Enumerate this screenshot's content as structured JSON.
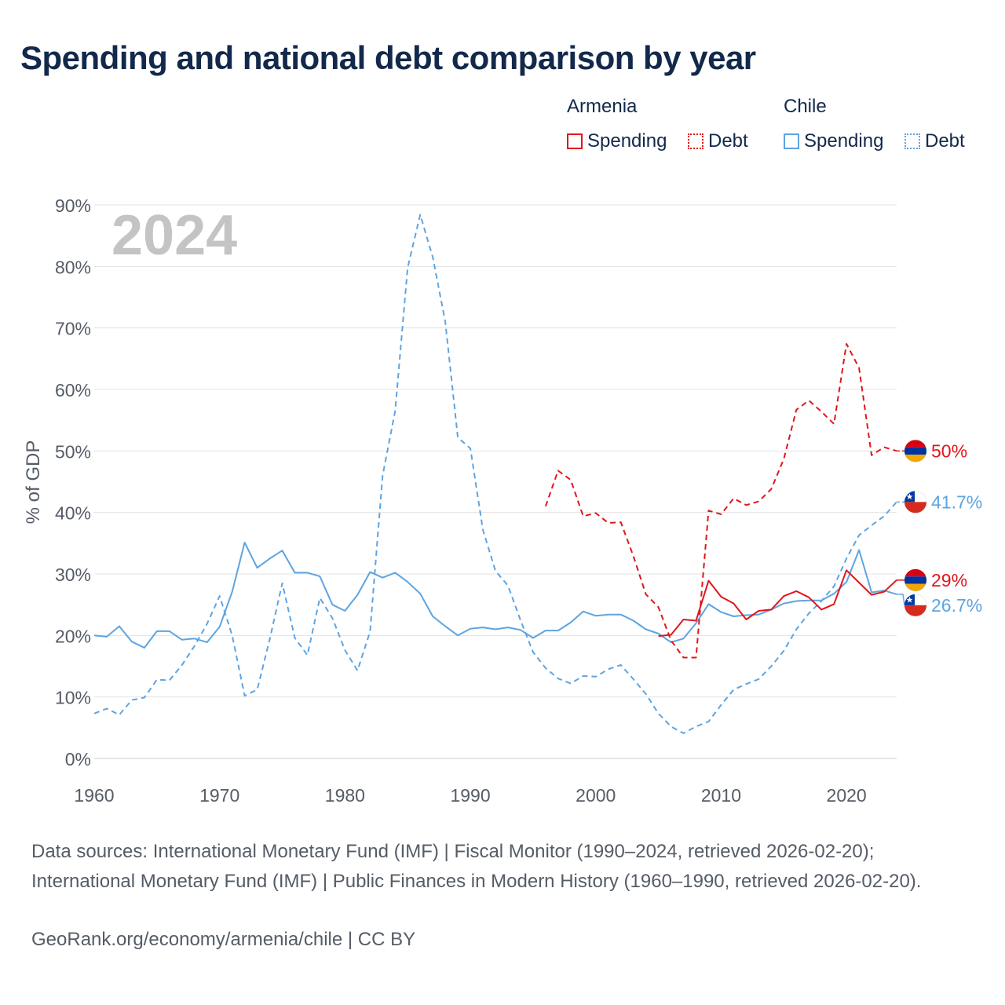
{
  "title": "Spending and national debt comparison by year",
  "legend": {
    "groups": [
      {
        "country": "Armenia",
        "color": "#e0161b",
        "items": [
          {
            "label": "Spending",
            "style": "solid"
          },
          {
            "label": "Debt",
            "style": "dotted"
          }
        ]
      },
      {
        "country": "Chile",
        "color": "#5ea4e0",
        "items": [
          {
            "label": "Spending",
            "style": "solid"
          },
          {
            "label": "Debt",
            "style": "dotted"
          }
        ]
      }
    ]
  },
  "chart_data": {
    "type": "line",
    "year_label": "2024",
    "ylabel": "% of GDP",
    "xlim": [
      1960,
      2024
    ],
    "ylim": [
      0,
      90
    ],
    "x_ticks": [
      1960,
      1970,
      1980,
      1990,
      2000,
      2010,
      2020
    ],
    "y_ticks": [
      "0%",
      "10%",
      "20%",
      "30%",
      "40%",
      "50%",
      "60%",
      "70%",
      "80%",
      "90%"
    ],
    "grid": true,
    "series": [
      {
        "name": "Chile Debt",
        "color": "#5ea4e0",
        "dash": true,
        "start": 1960,
        "end_label": "41.7%",
        "flag": "chile",
        "values": [
          7.3,
          8.1,
          7.1,
          9.5,
          9.9,
          12.8,
          12.7,
          15.2,
          18.3,
          21.9,
          26.4,
          20,
          10.2,
          11.2,
          19.4,
          28.5,
          19.6,
          16.8,
          26.1,
          22.8,
          17.6,
          14.3,
          20.6,
          46,
          56.5,
          79.8,
          88.4,
          81.5,
          71,
          52.2,
          50.4,
          37.2,
          30.5,
          28.1,
          22.5,
          17.3,
          14.7,
          13,
          12.2,
          13.4,
          13.3,
          14.5,
          15.2,
          12.9,
          10.5,
          7.3,
          5.2,
          4.1,
          5.2,
          6,
          8.7,
          11.2,
          12.1,
          12.9,
          15,
          17.5,
          21,
          23.6,
          25.6,
          28,
          32.5,
          36.3,
          37.9,
          39.4,
          41.7
        ]
      },
      {
        "name": "Chile Spending",
        "color": "#5ea4e0",
        "dash": false,
        "start": 1960,
        "end_label": "26.7%",
        "flag": "chile",
        "values": [
          20,
          19.8,
          21.5,
          19,
          18,
          20.7,
          20.7,
          19.3,
          19.5,
          18.9,
          21.4,
          27.1,
          35.1,
          31,
          32.5,
          33.8,
          30.2,
          30.2,
          29.6,
          25,
          24,
          26.6,
          30.3,
          29.4,
          30.2,
          28.7,
          26.8,
          23.1,
          21.5,
          20,
          21.1,
          21.3,
          21,
          21.3,
          20.9,
          19.6,
          20.8,
          20.8,
          22.1,
          23.9,
          23.2,
          23.4,
          23.4,
          22.4,
          21,
          20.3,
          18.9,
          19.5,
          22,
          25.1,
          23.8,
          23.1,
          23.3,
          23.4,
          24.2,
          25.2,
          25.6,
          25.7,
          25.7,
          26.8,
          28.7,
          33.9,
          27,
          27.3,
          26.7
        ]
      },
      {
        "name": "Armenia Debt",
        "color": "#e0161b",
        "dash": true,
        "start": 1996,
        "end_label": "50%",
        "flag": "armenia",
        "values": [
          41,
          46.8,
          45.3,
          39.4,
          39.9,
          38.3,
          38.4,
          32.9,
          26.7,
          24.6,
          19.2,
          16.4,
          16.4,
          40.3,
          39.7,
          42.3,
          41.2,
          41.8,
          43.8,
          48.7,
          56.7,
          58.2,
          56.4,
          54.4,
          67.4,
          63.5,
          49.3,
          50.6,
          50
        ]
      },
      {
        "name": "Armenia Spending",
        "color": "#e0161b",
        "dash": false,
        "start": 2005,
        "end_label": "29%",
        "flag": "armenia",
        "values": [
          19.9,
          20.1,
          22.6,
          22.4,
          28.9,
          26.3,
          25.2,
          22.6,
          24,
          24.2,
          26.4,
          27.2,
          26.2,
          24.2,
          25.1,
          30.6,
          28.6,
          26.6,
          27.1,
          29
        ]
      }
    ]
  },
  "source_text": "Data sources: International Monetary Fund (IMF) | Fiscal Monitor (1990–2024, retrieved 2026-02-20); International Monetary Fund (IMF) | Public Finances in Modern History (1960–1990, retrieved 2026-02-20).",
  "site_text": "GeoRank.org/economy/armenia/chile | CC BY",
  "colors": {
    "title": "#13294b",
    "armenia": "#e0161b",
    "chile": "#5ea4e0",
    "grid": "#e3e3e3",
    "axis_text": "#555c66",
    "year_watermark": "#c4c4c4"
  }
}
